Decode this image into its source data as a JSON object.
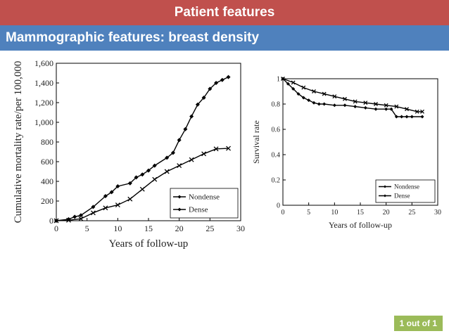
{
  "header": {
    "title": "Patient features",
    "subtitle": "Mammographic features: breast density"
  },
  "colors": {
    "title_bg": "#c0504d",
    "subtitle_bg": "#4f81bd",
    "badge_bg": "#9bbb59"
  },
  "pagination": {
    "label": "1 out of  1"
  },
  "chart_data": [
    {
      "type": "line",
      "xlabel": "Years of follow-up",
      "ylabel": "Cumulative mortality rate/per 100,000",
      "xlim": [
        0,
        30
      ],
      "ylim": [
        0,
        1600
      ],
      "xticks": [
        0,
        5,
        10,
        15,
        20,
        25,
        30
      ],
      "yticks": [
        0,
        200,
        400,
        600,
        800,
        1000,
        1200,
        1400,
        1600
      ],
      "xtick_labels": [
        "0",
        "5",
        "10",
        "15",
        "20",
        "25",
        "30"
      ],
      "ytick_labels": [
        "0",
        "200",
        "400",
        "600",
        "800",
        "1,000",
        "1,200",
        "1,400",
        "1,600"
      ],
      "legend": "bottom-right",
      "grid": false,
      "series": [
        {
          "name": "Nondense",
          "marker": "cross",
          "x": [
            0,
            2,
            4,
            6,
            8,
            10,
            12,
            14,
            16,
            18,
            20,
            22,
            24,
            26,
            28
          ],
          "y": [
            0,
            5,
            20,
            80,
            130,
            160,
            220,
            320,
            420,
            500,
            560,
            620,
            680,
            730,
            735
          ]
        },
        {
          "name": "Dense",
          "marker": "diamond",
          "x": [
            0,
            2,
            3,
            4,
            6,
            8,
            9,
            10,
            12,
            13,
            14,
            15,
            16,
            18,
            19,
            20,
            21,
            22,
            23,
            24,
            25,
            26,
            27,
            28
          ],
          "y": [
            0,
            15,
            40,
            55,
            140,
            250,
            290,
            350,
            380,
            440,
            470,
            510,
            560,
            640,
            690,
            820,
            930,
            1060,
            1180,
            1250,
            1340,
            1400,
            1430,
            1460
          ]
        }
      ]
    },
    {
      "type": "line",
      "xlabel": "Years of follow-up",
      "ylabel": "Survival rate",
      "xlim": [
        0,
        30
      ],
      "ylim": [
        0,
        1
      ],
      "xticks": [
        0,
        5,
        10,
        15,
        20,
        25,
        30
      ],
      "yticks": [
        0,
        0.2,
        0.4,
        0.6,
        0.8,
        1
      ],
      "xtick_labels": [
        "0",
        "5",
        "10",
        "15",
        "20",
        "25",
        "30"
      ],
      "ytick_labels": [
        "0",
        "0.2",
        "0.4",
        "0.6",
        "0.8",
        "1"
      ],
      "legend": "bottom-right",
      "grid": false,
      "series": [
        {
          "name": "Nondense",
          "marker": "cross",
          "x": [
            0,
            2,
            4,
            6,
            8,
            10,
            12,
            14,
            16,
            18,
            20,
            22,
            24,
            26,
            27
          ],
          "y": [
            1.0,
            0.97,
            0.93,
            0.9,
            0.88,
            0.86,
            0.84,
            0.82,
            0.81,
            0.8,
            0.79,
            0.78,
            0.76,
            0.74,
            0.74
          ]
        },
        {
          "name": "Dense",
          "marker": "diamond",
          "x": [
            0,
            1,
            2,
            3,
            4,
            5,
            6,
            7,
            8,
            10,
            12,
            14,
            16,
            18,
            20,
            21,
            22,
            23,
            24,
            25,
            27
          ],
          "y": [
            1.0,
            0.96,
            0.92,
            0.88,
            0.85,
            0.83,
            0.81,
            0.8,
            0.8,
            0.79,
            0.79,
            0.78,
            0.77,
            0.76,
            0.76,
            0.76,
            0.7,
            0.7,
            0.7,
            0.7,
            0.7
          ]
        }
      ]
    }
  ]
}
